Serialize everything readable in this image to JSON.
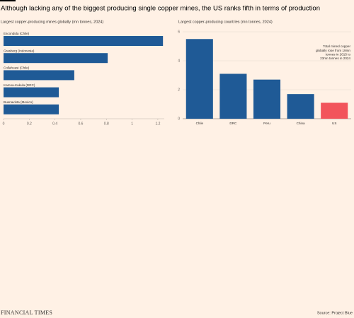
{
  "title": "Although lacking any of the biggest producing single copper mines, the US ranks fifth in terms of production",
  "brand": "FINANCIAL TIMES",
  "source": "Source: Project Blue",
  "chart_data": [
    {
      "type": "barh",
      "title": "Largest copper-producing mines globally (mn tonnes, 2024)",
      "categories": [
        "Escondida (Chile)",
        "Grasberg (Indonesia)",
        "Collahuasi (Chile)",
        "Kamoa-Kakula (DRC)",
        "Buenavista (Mexico)"
      ],
      "values": [
        1.24,
        0.81,
        0.55,
        0.43,
        0.43
      ],
      "color": "#1f5a96",
      "xlim": [
        0,
        1.25
      ],
      "xticks": [
        0,
        0.2,
        0.4,
        0.6,
        0.8,
        1,
        1.2
      ]
    },
    {
      "type": "bar",
      "title": "Largest copper-producing countries (mn tonnes, 2024)",
      "categories": [
        "Chile",
        "DRC",
        "Peru",
        "China",
        "US"
      ],
      "values": [
        5.5,
        3.1,
        2.7,
        1.7,
        1.1
      ],
      "colors": [
        "#1f5a96",
        "#1f5a96",
        "#1f5a96",
        "#1f5a96",
        "#f2545b"
      ],
      "ylim": [
        0,
        6
      ],
      "yticks": [
        0,
        2,
        4,
        6
      ],
      "grid": true,
      "annotation": [
        "Total mined copper",
        "globally rose from 19mn",
        "tonnes in 2015 to",
        "23mn tonnes in 2024"
      ]
    }
  ]
}
